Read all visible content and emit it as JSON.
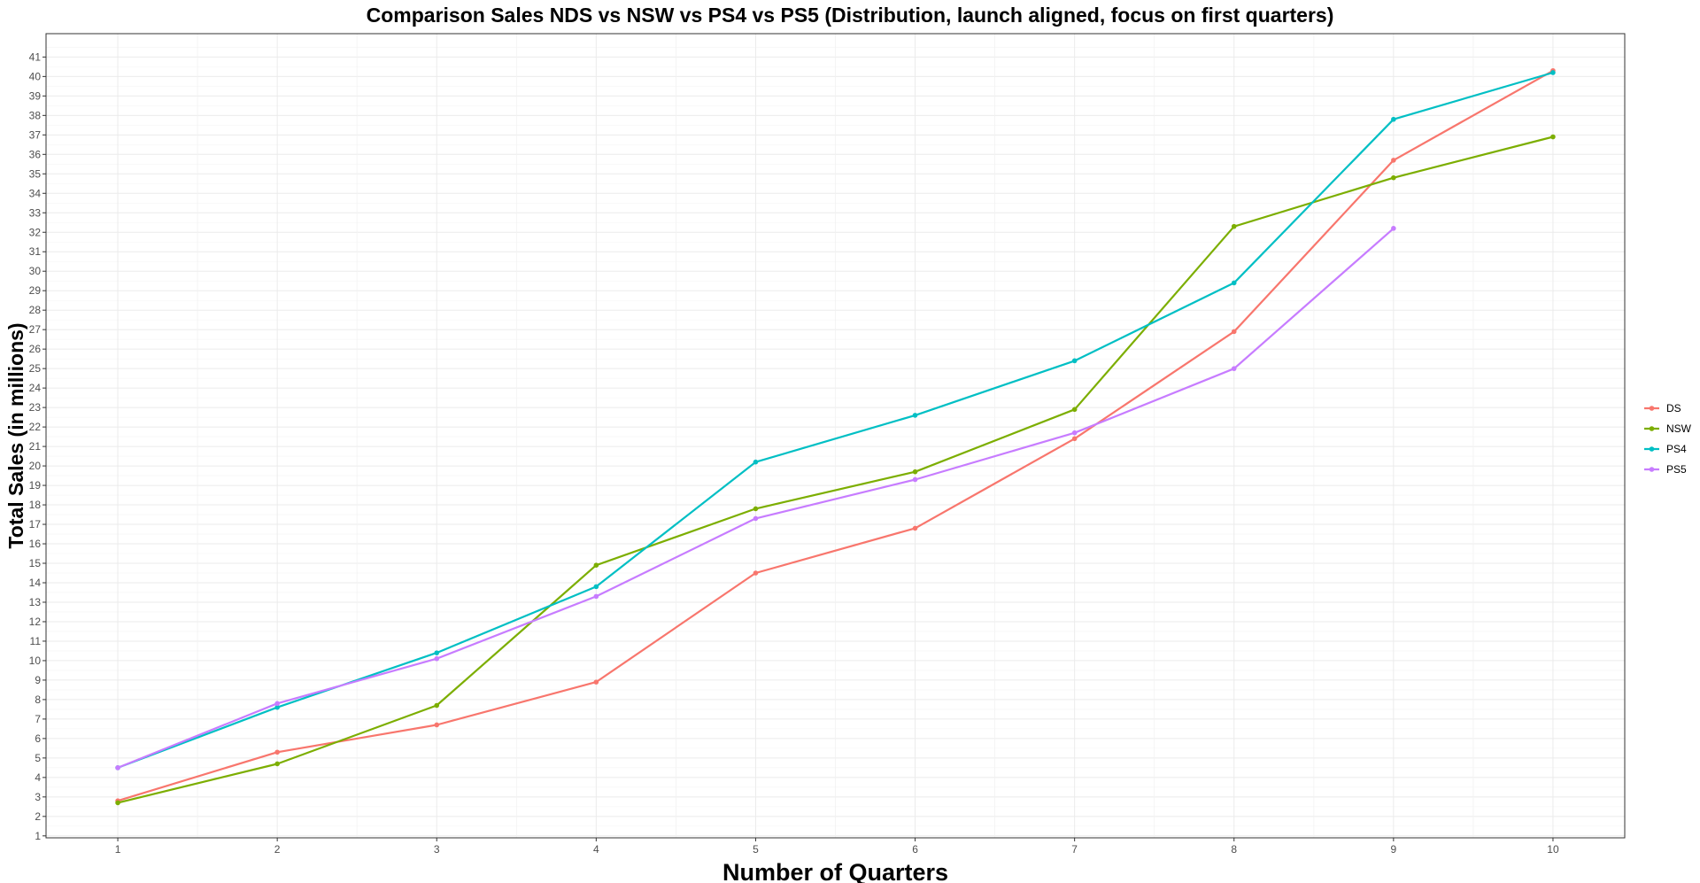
{
  "chart_data": {
    "type": "line",
    "title": "Comparison Sales NDS vs NSW vs PS4 vs PS5 (Distribution, launch aligned, focus on first quarters)",
    "xlabel": "Number of Quarters",
    "ylabel": "Total Sales (in millions)",
    "x": [
      1,
      2,
      3,
      4,
      5,
      6,
      7,
      8,
      9,
      10
    ],
    "xlim": [
      0.55,
      10.45
    ],
    "ylim": [
      0.9,
      42.2
    ],
    "x_ticks": [
      1,
      2,
      3,
      4,
      5,
      6,
      7,
      8,
      9,
      10
    ],
    "y_ticks": [
      1,
      2,
      3,
      4,
      5,
      6,
      7,
      8,
      9,
      10,
      11,
      12,
      13,
      14,
      15,
      16,
      17,
      18,
      19,
      20,
      21,
      22,
      23,
      24,
      25,
      26,
      27,
      28,
      29,
      30,
      31,
      32,
      33,
      34,
      35,
      36,
      37,
      38,
      39,
      40,
      41
    ],
    "grid": true,
    "legend_position": "right",
    "series": [
      {
        "name": "DS",
        "color": "#F8766D",
        "values": [
          2.8,
          5.3,
          6.7,
          8.9,
          14.5,
          16.8,
          21.4,
          26.9,
          35.7,
          40.3
        ]
      },
      {
        "name": "NSW",
        "color": "#7CAE00",
        "values": [
          2.7,
          4.7,
          7.7,
          14.9,
          17.8,
          19.7,
          22.9,
          32.3,
          34.8,
          36.9
        ]
      },
      {
        "name": "PS4",
        "color": "#00BFC4",
        "values": [
          4.5,
          7.6,
          10.4,
          13.8,
          20.2,
          22.6,
          25.4,
          29.4,
          37.8,
          40.2
        ]
      },
      {
        "name": "PS5",
        "color": "#C77CFF",
        "values": [
          4.5,
          7.8,
          10.1,
          13.3,
          17.3,
          19.3,
          21.7,
          25.0,
          32.2,
          null
        ]
      }
    ]
  }
}
